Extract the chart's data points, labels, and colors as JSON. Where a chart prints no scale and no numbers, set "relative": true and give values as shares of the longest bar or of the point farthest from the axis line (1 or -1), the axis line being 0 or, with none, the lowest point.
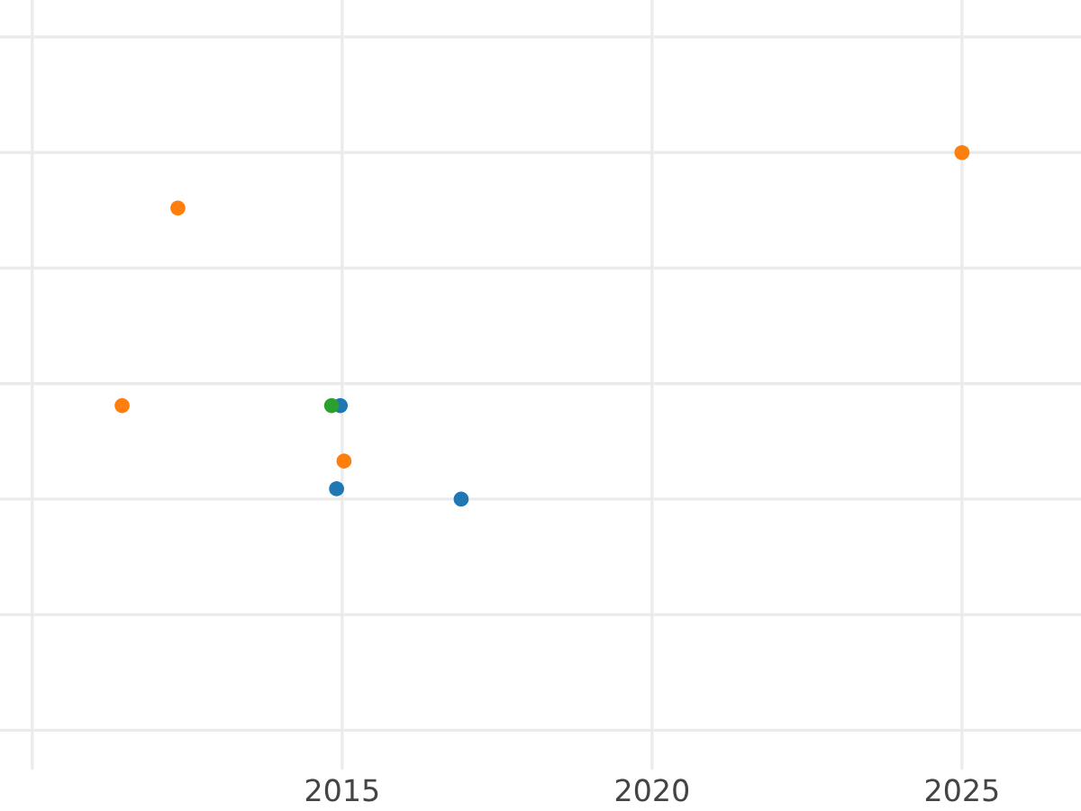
{
  "chart_data": {
    "type": "scatter",
    "relative": true,
    "grid": true,
    "marker": "circle",
    "tick_labels": "x",
    "xlim": [
      2009.48,
      2026.92
    ],
    "xticks": [
      {
        "value": 2010,
        "label": null
      },
      2015,
      2020,
      2025
    ],
    "series": [
      {
        "color": "#ff7f0e",
        "x": [
          2012.35,
          2011.45,
          2015.03,
          2025.0
        ],
        "values": [
          0.84,
          0.27,
          0.11,
          1.0
        ]
      },
      {
        "color": "#1f77b4",
        "x": [
          2014.97,
          2014.91,
          2016.92
        ],
        "values": [
          0.27,
          0.03,
          0.0
        ]
      },
      {
        "color": "#2ca02c",
        "x": [
          2014.83
        ],
        "values": [
          0.27
        ]
      }
    ]
  }
}
